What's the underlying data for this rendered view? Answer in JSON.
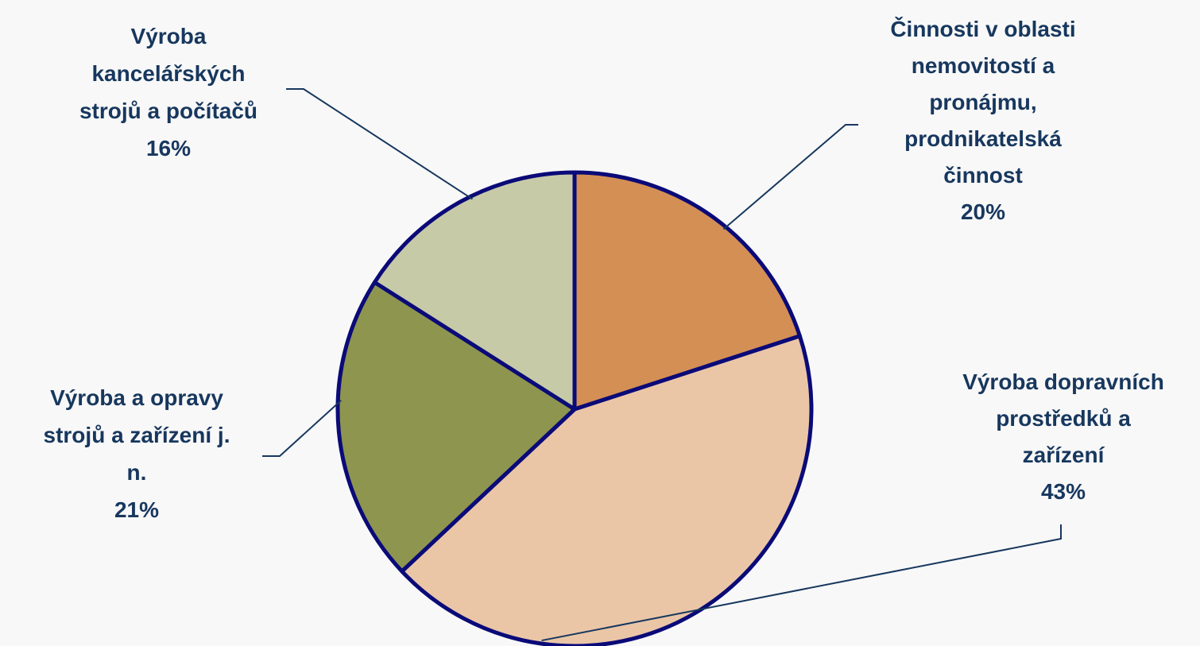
{
  "chart_data": {
    "type": "pie",
    "title": "",
    "slices": [
      {
        "label_lines": [
          "Činnosti v oblasti",
          "nemovitostí a",
          "pronájmu,",
          "prodnikatelská",
          "činnost"
        ],
        "percent_label": "20%",
        "value": 20,
        "color": "#d48f55"
      },
      {
        "label_lines": [
          "Výroba dopravních",
          "prostředků a",
          "zařízení"
        ],
        "percent_label": "43%",
        "value": 43,
        "color": "#eac6a7"
      },
      {
        "label_lines": [
          "Výroba a opravy",
          "strojů a zařízení j.",
          "n."
        ],
        "percent_label": "21%",
        "value": 21,
        "color": "#8e954f"
      },
      {
        "label_lines": [
          "Výroba",
          "kancelářských",
          "strojů a počítačů"
        ],
        "percent_label": "16%",
        "value": 16,
        "color": "#c7caa7"
      }
    ],
    "start_direction": "12 o'clock",
    "direction": "clockwise",
    "border_color": "#0a0a78",
    "label_color": "#17375e",
    "legend": "none"
  }
}
